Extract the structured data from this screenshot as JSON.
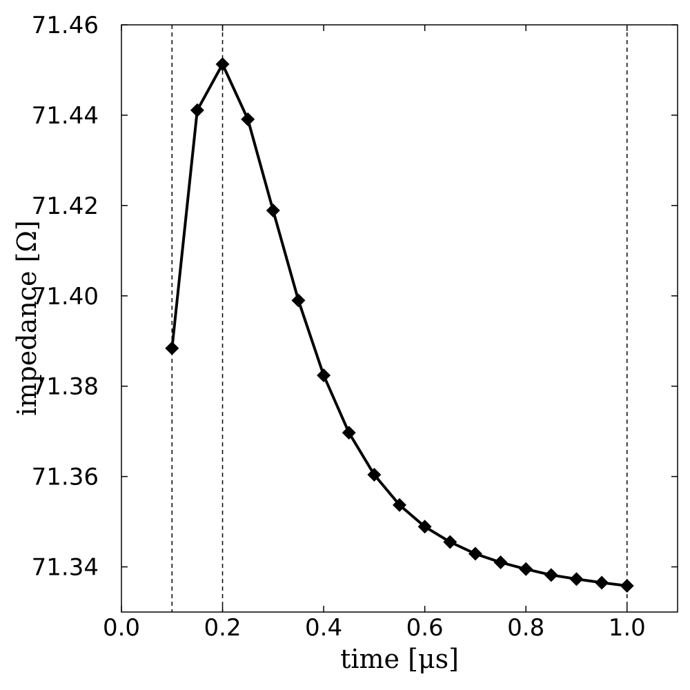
{
  "chart_data": {
    "type": "line",
    "xlabel": "time [μs]",
    "ylabel": "impedance [Ω]",
    "xlim": [
      0.0,
      1.1
    ],
    "ylim": [
      71.33,
      71.46
    ],
    "xticks": [
      "0.0",
      "0.2",
      "0.4",
      "0.6",
      "0.8",
      "1.0"
    ],
    "yticks": [
      "71.34",
      "71.36",
      "71.38",
      "71.40",
      "71.42",
      "71.44",
      "71.46"
    ],
    "grid": false,
    "vlines": [
      0.1,
      0.2,
      1.0
    ],
    "series": [
      {
        "marker": "diamond",
        "color": "#000000",
        "x": [
          0.1,
          0.15,
          0.2,
          0.25,
          0.3,
          0.35,
          0.4,
          0.45,
          0.5,
          0.55,
          0.6,
          0.65,
          0.7,
          0.75,
          0.8,
          0.85,
          0.9,
          0.95,
          1.0
        ],
        "y": [
          71.3884,
          71.4411,
          71.4513,
          71.4391,
          71.4189,
          71.399,
          71.3824,
          71.3697,
          71.3604,
          71.3537,
          71.3489,
          71.3455,
          71.3429,
          71.341,
          71.3395,
          71.3382,
          71.3373,
          71.3365,
          71.3358
        ]
      }
    ]
  }
}
